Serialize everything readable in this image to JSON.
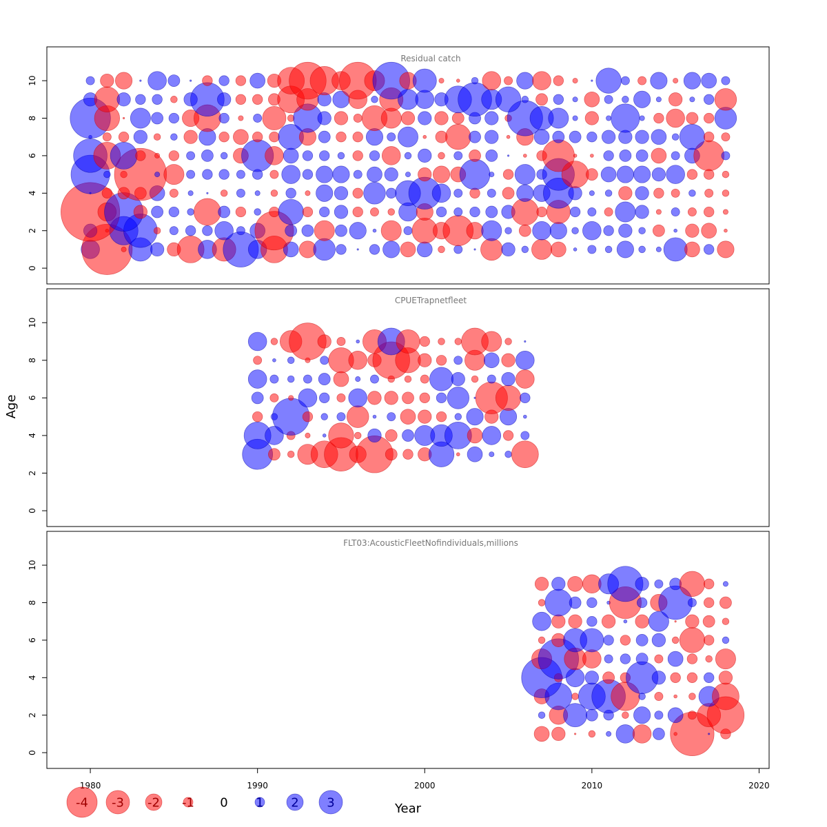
{
  "chart_data": {
    "type": "bubble",
    "xlabel": "Year",
    "ylabel": "Age",
    "xlim": [
      1977.4,
      2020.6
    ],
    "xticks": [
      1980,
      1990,
      2000,
      2010,
      2020
    ],
    "ylim": [
      -0.4,
      11.4
    ],
    "yticks": [
      0,
      2,
      4,
      6,
      8,
      10
    ],
    "colors": {
      "negative": "#ff0000",
      "positive": "#0000ff",
      "alpha": 0.5
    },
    "legend": {
      "placement": "bottom-left",
      "entries": [
        {
          "label": "-4",
          "value": -4
        },
        {
          "label": "-3",
          "value": -3
        },
        {
          "label": "-2",
          "value": -2
        },
        {
          "label": "-1",
          "value": -1
        },
        {
          "label": "0",
          "value": 0
        },
        {
          "label": "1",
          "value": 1
        },
        {
          "label": "2",
          "value": 2
        },
        {
          "label": "3",
          "value": 3
        }
      ]
    },
    "panels": [
      {
        "title": "Residual catch",
        "years": [
          1980,
          1981,
          1982,
          1983,
          1984,
          1985,
          1986,
          1987,
          1988,
          1989,
          1990,
          1991,
          1992,
          1993,
          1994,
          1995,
          1996,
          1997,
          1998,
          1999,
          2000,
          2001,
          2002,
          2003,
          2004,
          2005,
          2006,
          2007,
          2008,
          2009,
          2010,
          2011,
          2012,
          2013,
          2014,
          2015,
          2016,
          2017,
          2018
        ],
        "ages": [
          1,
          2,
          3,
          4,
          5,
          6,
          7,
          8,
          9,
          10
        ],
        "residuals": {
          "1": [
            1.1,
            -3,
            -0.3,
            1.4,
            0.8,
            -0.8,
            -1.6,
            1.1,
            -1.4,
            2.1,
            1.1,
            -1.6,
            0.9,
            -1.0,
            1.3,
            0.6,
            0.1,
            0.6,
            1.0,
            -0.9,
            0.9,
            -0.4,
            0.5,
            0.1,
            -1.3,
            0.8,
            0.4,
            -1.2,
            -0.9,
            0.2,
            0.5,
            0.4,
            1.0,
            0.4,
            0.3,
            1.4,
            -0.9,
            0.6,
            -1.0
          ],
          "2": [
            0.8,
            -0.2,
            1.7,
            2.0,
            -0.4,
            0.5,
            0.6,
            0.6,
            1.1,
            0.5,
            0.9,
            -2.3,
            0.7,
            0.7,
            -1.2,
            0.7,
            1.0,
            0.2,
            -1.2,
            0.5,
            -1.5,
            -1.0,
            -1.8,
            -1.0,
            1.2,
            0.4,
            -0.7,
            1.1,
            1.0,
            0.4,
            1.1,
            0.6,
            0.8,
            0.4,
            -0.7,
            0.2,
            -0.8,
            -0.9,
            -0.2
          ],
          "3": [
            -3.5,
            -1.1,
            2.3,
            -0.8,
            0.7,
            0.6,
            0.4,
            -1.6,
            0.7,
            -0.6,
            0.4,
            -0.6,
            1.5,
            -0.6,
            0.6,
            0.8,
            -0.6,
            -0.5,
            -0.4,
            1.1,
            -1.0,
            0.6,
            0.5,
            0.6,
            0.7,
            0.8,
            -1.6,
            -0.6,
            -1.4,
            0.6,
            0.5,
            -0.5,
            1.2,
            0.8,
            -0.3,
            0.5,
            -0.5,
            -0.6,
            -0.3
          ],
          "4": [
            0.1,
            -0.6,
            -0.7,
            -0.7,
            0.9,
            -0.5,
            0.3,
            0.1,
            -0.4,
            0.5,
            0.3,
            -0.4,
            0.6,
            -0.3,
            1.0,
            0.8,
            -0.6,
            1.3,
            0.6,
            1.5,
            1.9,
            1.1,
            0.5,
            -0.6,
            0.5,
            -0.7,
            1.0,
            1.0,
            1.8,
            0.8,
            0.3,
            0.4,
            -0.8,
            0.8,
            -0.6,
            -0.5,
            0.4,
            -0.5,
            -0.4
          ],
          "5": [
            2.3,
            0.4,
            -0.4,
            -3.1,
            0.3,
            -1.2,
            0.5,
            0.6,
            0.6,
            0.5,
            0.6,
            -0.5,
            1.1,
            0.6,
            1.0,
            1.0,
            0.5,
            0.9,
            0.8,
            0.3,
            -0.8,
            -1.0,
            -0.9,
            1.8,
            0.3,
            -0.6,
            1.2,
            0.6,
            1.9,
            -1.6,
            -0.7,
            0.9,
            1.0,
            1.0,
            0.8,
            1.1,
            -0.6,
            -0.6,
            -0.4
          ],
          "6": [
            2.0,
            -1.6,
            1.6,
            -0.6,
            -0.3,
            -0.6,
            0.5,
            0.7,
            0.4,
            -0.9,
            1.9,
            -1.1,
            0.9,
            0.6,
            0.6,
            0.4,
            -0.6,
            0.6,
            -1.1,
            0.4,
            0.8,
            -0.4,
            0.5,
            -0.7,
            0.7,
            0.1,
            -0.2,
            -0.6,
            -1.9,
            -0.2,
            -0.2,
            0.6,
            0.7,
            0.7,
            -0.9,
            0.5,
            0.9,
            -1.8,
            0.5
          ],
          "7": [
            0.2,
            -0.5,
            -0.6,
            0.8,
            -0.4,
            0.4,
            -0.8,
            1.0,
            -0.6,
            -0.9,
            -0.6,
            -0.6,
            1.5,
            -1.0,
            0.7,
            -0.6,
            -0.6,
            1.0,
            0.5,
            1.2,
            -0.2,
            -0.7,
            -1.5,
            0.7,
            0.8,
            -0.2,
            -1.0,
            0.9,
            0.7,
            0.7,
            0.6,
            0.8,
            0.8,
            0.8,
            0.9,
            0.4,
            1.5,
            -0.6,
            -0.5
          ],
          "8": [
            2.4,
            -1.5,
            -0.1,
            1.2,
            0.7,
            0.6,
            -1.0,
            -1.6,
            0.6,
            -0.3,
            0.5,
            -1.4,
            -0.4,
            1.7,
            0.8,
            -0.8,
            -0.5,
            -1.5,
            -1.2,
            -0.8,
            0.8,
            -0.8,
            -0.7,
            0.7,
            0.8,
            -0.4,
            2.1,
            1.4,
            1.2,
            0.3,
            -0.8,
            0.3,
            1.7,
            0.3,
            -0.6,
            -1.1,
            -0.7,
            -0.6,
            1.3
          ],
          "9": [
            0.8,
            -1.5,
            0.8,
            0.6,
            0.6,
            -0.4,
            0.8,
            2.0,
            0.8,
            -0.6,
            -0.6,
            -0.7,
            -1.6,
            -1.3,
            0.8,
            1.0,
            -1.1,
            0.4,
            -1.4,
            1.2,
            1.1,
            0.8,
            1.6,
            2.0,
            1.2,
            1.5,
            0.4,
            -0.7,
            0.6,
            0.3,
            -0.9,
            0.5,
            0.4,
            1.0,
            0.3,
            -0.8,
            0.3,
            0.6,
            -1.3
          ],
          "10": [
            0.5,
            -0.8,
            -1.0,
            0.1,
            1.1,
            0.7,
            0.1,
            -0.6,
            0.6,
            -0.6,
            0.9,
            -0.8,
            -1.6,
            -2.2,
            -1.7,
            -1.1,
            -2.2,
            -1.2,
            2.2,
            -1.0,
            1.4,
            -0.3,
            -0.2,
            0.4,
            -1.1,
            -0.5,
            1.0,
            -1.1,
            -0.6,
            -0.3,
            0.1,
            1.5,
            0.5,
            -0.5,
            1.0,
            -0.3,
            1.0,
            0.9,
            0.5
          ]
        }
      },
      {
        "title": "CPUETrapnetfleet",
        "years": [
          1990,
          1991,
          1992,
          1993,
          1994,
          1995,
          1996,
          1997,
          1998,
          1999,
          2000,
          2001,
          2002,
          2003,
          2004,
          2005,
          2006
        ],
        "ages": [
          3,
          4,
          5,
          6,
          7,
          8,
          9
        ],
        "residuals": {
          "3": [
            1.8,
            -0.7,
            -0.4,
            -1.2,
            -1.6,
            -2.0,
            -1.0,
            -2.2,
            -0.7,
            -0.6,
            -0.8,
            1.5,
            -0.2,
            0.9,
            0.3,
            0.4,
            -1.6
          ],
          "4": [
            1.6,
            1.1,
            -0.5,
            -0.3,
            0.2,
            -1.5,
            -0.4,
            0.8,
            -0.7,
            0.7,
            1.2,
            1.3,
            1.6,
            -0.9,
            1.1,
            -0.6,
            0.5
          ],
          "5": [
            -0.6,
            0.4,
            2.2,
            -0.6,
            0.4,
            0.5,
            -1.3,
            0.2,
            0.5,
            -0.9,
            -0.8,
            -0.6,
            0.4,
            1.0,
            -0.8,
            1.0,
            0.2
          ],
          "6": [
            0.7,
            -0.5,
            -0.3,
            1.1,
            0.6,
            -0.5,
            1.1,
            -0.8,
            -0.8,
            -0.7,
            -0.6,
            0.6,
            1.3,
            0.1,
            -1.9,
            -1.5,
            0.6
          ],
          "7": [
            1.1,
            0.5,
            0.4,
            0.5,
            0.7,
            -0.9,
            0.3,
            0.5,
            -0.4,
            -0.4,
            -0.5,
            1.4,
            0.8,
            -0.4,
            0.5,
            0.8,
            -1.1
          ],
          "8": [
            -0.5,
            0.2,
            0.4,
            -0.3,
            0.5,
            -1.5,
            -1.1,
            -0.8,
            -2.2,
            -1.5,
            -0.8,
            -0.6,
            0.5,
            -1.2,
            0.9,
            -0.8,
            1.1
          ],
          "9": [
            1.1,
            -0.4,
            -1.3,
            -2.2,
            -0.8,
            -0.5,
            0.2,
            -1.4,
            1.6,
            -1.4,
            -0.6,
            -0.4,
            -0.4,
            -1.6,
            -1.2,
            -0.4,
            0.1
          ]
        }
      },
      {
        "title": "FLT03:AcousticFleetNofindividuals,millions",
        "years": [
          2007,
          2008,
          2009,
          2010,
          2011,
          2012,
          2013,
          2014,
          2015,
          2016,
          2017,
          2018
        ],
        "ages": [
          1,
          2,
          3,
          4,
          5,
          6,
          7,
          8,
          9
        ],
        "residuals": {
          "1": [
            -0.9,
            -0.8,
            -0.1,
            -0.4,
            0.3,
            1.1,
            -1.1,
            0.7,
            -0.2,
            -2.6,
            0.1,
            -0.6
          ],
          "2": [
            0.4,
            -1.1,
            1.4,
            0.7,
            0.6,
            -0.4,
            1.0,
            0.5,
            0.9,
            -0.5,
            -1.4,
            -2.2
          ],
          "3": [
            -0.9,
            1.6,
            -0.4,
            1.6,
            2.0,
            -1.7,
            0.4,
            -0.5,
            -0.2,
            -0.4,
            1.2,
            -1.6
          ],
          "4": [
            2.4,
            -0.5,
            1.1,
            0.8,
            -0.7,
            -0.6,
            1.9,
            0.8,
            -0.6,
            -0.6,
            0.6,
            -0.8
          ],
          "5": [
            -1.2,
            2.4,
            -1.3,
            -1.1,
            0.5,
            0.6,
            0.7,
            -0.5,
            0.9,
            -0.6,
            -0.4,
            -1.2
          ],
          "6": [
            -0.4,
            -0.8,
            1.4,
            1.4,
            0.6,
            -0.6,
            0.7,
            0.8,
            -0.4,
            -1.5,
            -0.6,
            0.4
          ],
          "7": [
            1.1,
            -0.8,
            -0.8,
            0.6,
            -0.8,
            0.2,
            -0.8,
            1.2,
            -0.1,
            -0.8,
            -0.7,
            -0.4
          ],
          "8": [
            -0.4,
            1.6,
            0.7,
            0.6,
            0.2,
            -1.9,
            0.6,
            -1.0,
            2.0,
            0.5,
            -0.6,
            -0.7
          ],
          "9": [
            -0.8,
            0.8,
            -0.9,
            -1.1,
            1.2,
            2.1,
            0.8,
            0.5,
            0.7,
            -1.5,
            -0.6,
            0.3
          ]
        }
      }
    ]
  }
}
